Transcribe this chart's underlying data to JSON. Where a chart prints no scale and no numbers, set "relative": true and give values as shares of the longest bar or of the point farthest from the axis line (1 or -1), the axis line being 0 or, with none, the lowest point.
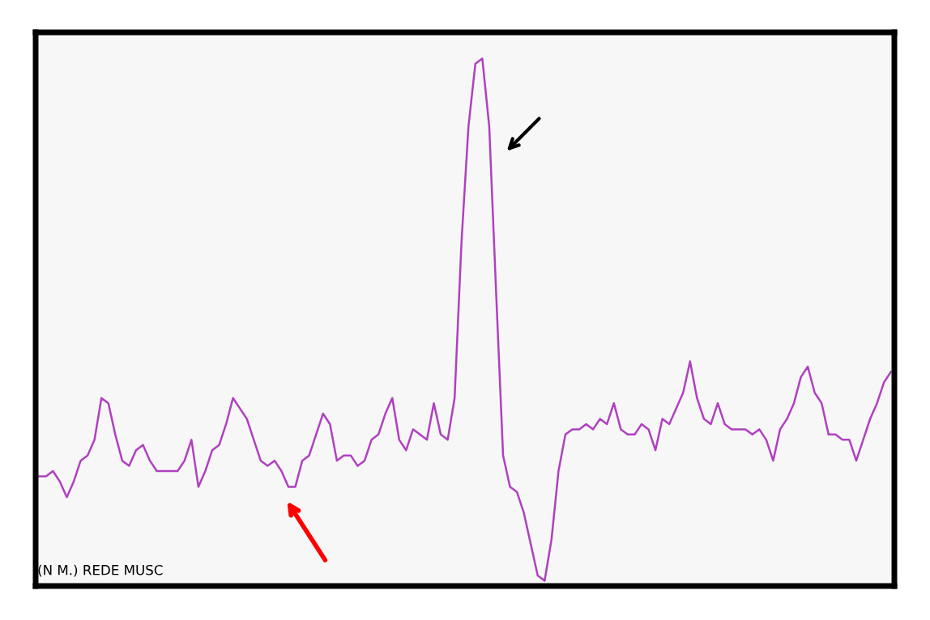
{
  "chart_data": {
    "type": "line",
    "relative": true,
    "categories": [
      null,
      null,
      null,
      null,
      null,
      null,
      null,
      null,
      null,
      null,
      null,
      null,
      null,
      null,
      null,
      null,
      null,
      null,
      null,
      null,
      null,
      null,
      null,
      null,
      null,
      null,
      null,
      null,
      null,
      null,
      null,
      null,
      null,
      null,
      null,
      null,
      null,
      null,
      null,
      null,
      null,
      null,
      null,
      null,
      null,
      null,
      null,
      null,
      null,
      null,
      null,
      null,
      null,
      null,
      null,
      null,
      null,
      null,
      null,
      null,
      null,
      null,
      null,
      null,
      null,
      null,
      null,
      null,
      null,
      null,
      null,
      null,
      null,
      null,
      null,
      null,
      null,
      null,
      null,
      null,
      null,
      null,
      null,
      null,
      null,
      null,
      null,
      null,
      null,
      null,
      null,
      null,
      null,
      null,
      null,
      null,
      null,
      null,
      null,
      null,
      null,
      null,
      null,
      null,
      null,
      null,
      null,
      null,
      null,
      null,
      null,
      null,
      null,
      null,
      null,
      null,
      null,
      null,
      null,
      null,
      null,
      null,
      null,
      null
    ],
    "series": [
      {
        "color": "#b040c0",
        "values": [
          0.2,
          0.2,
          0.21,
          0.19,
          0.16,
          0.19,
          0.23,
          0.24,
          0.27,
          0.35,
          0.34,
          0.28,
          0.23,
          0.22,
          0.25,
          0.26,
          0.23,
          0.21,
          0.21,
          0.21,
          0.21,
          0.23,
          0.27,
          0.18,
          0.21,
          0.25,
          0.26,
          0.3,
          0.35,
          0.33,
          0.31,
          0.27,
          0.23,
          0.22,
          0.23,
          0.21,
          0.18,
          0.18,
          0.23,
          0.24,
          0.28,
          0.32,
          0.3,
          0.23,
          0.24,
          0.24,
          0.22,
          0.23,
          0.27,
          0.28,
          0.32,
          0.35,
          0.27,
          0.25,
          0.29,
          0.28,
          0.27,
          0.34,
          0.28,
          0.27,
          0.35,
          0.65,
          0.87,
          0.99,
          1.0,
          0.87,
          0.55,
          0.24,
          0.18,
          0.17,
          0.13,
          0.07,
          0.01,
          0.0,
          0.08,
          0.21,
          0.28,
          0.29,
          0.29,
          0.3,
          0.29,
          0.31,
          0.3,
          0.34,
          0.29,
          0.28,
          0.28,
          0.3,
          0.29,
          0.25,
          0.31,
          0.3,
          0.33,
          0.36,
          0.42,
          0.35,
          0.31,
          0.3,
          0.34,
          0.3,
          0.29,
          0.29,
          0.29,
          0.28,
          0.29,
          0.27,
          0.23,
          0.29,
          0.31,
          0.34,
          0.39,
          0.41,
          0.36,
          0.34,
          0.28,
          0.28,
          0.27,
          0.27,
          0.23,
          0.27,
          0.31,
          0.34,
          0.38,
          0.4
        ]
      }
    ],
    "annotations": [
      "(N M.) REDE MUSC"
    ]
  }
}
